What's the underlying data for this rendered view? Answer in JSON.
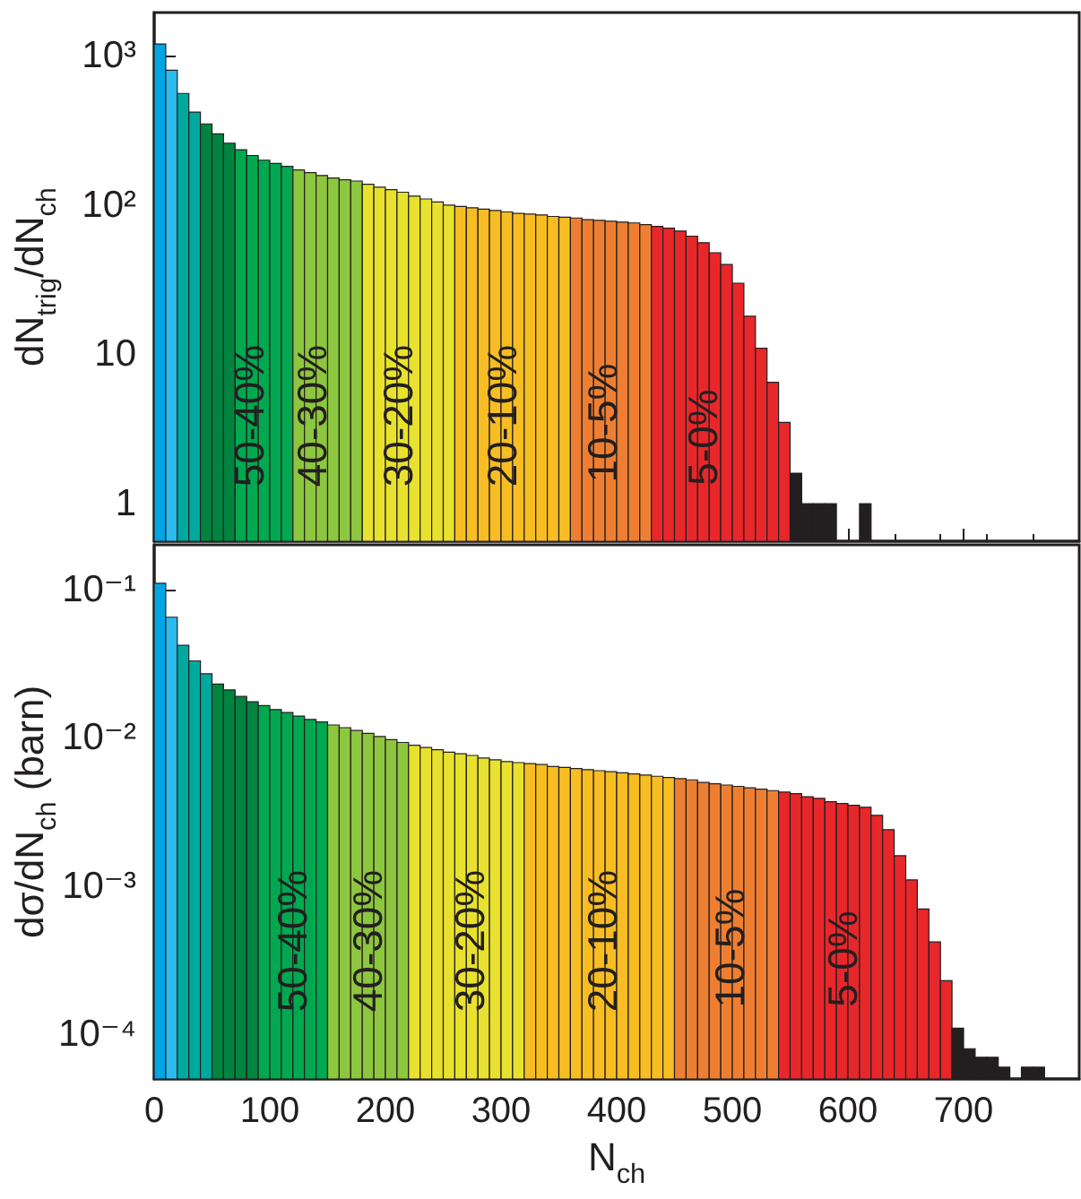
{
  "chart_data": [
    {
      "type": "histogram",
      "ylabel": "dN$_{trig}$/dN$_{ch}$",
      "log": "y",
      "tick_labels": "y",
      "bins": [
        0,
        10,
        20,
        30,
        40,
        50,
        60,
        70,
        80,
        90,
        100,
        110,
        120,
        130,
        140,
        150,
        160,
        170,
        180,
        190,
        200,
        210,
        220,
        230,
        240,
        250,
        260,
        270,
        280,
        290,
        300,
        310,
        320,
        330,
        340,
        350,
        360,
        370,
        380,
        390,
        400,
        410,
        420,
        430,
        440,
        450,
        460,
        470,
        480,
        490,
        500,
        510,
        520,
        530,
        540,
        550,
        560,
        570,
        580,
        590,
        600,
        610,
        620,
        630,
        640,
        650,
        660,
        670,
        680,
        690,
        700,
        710,
        720,
        730,
        740,
        750,
        760,
        770,
        780,
        790,
        800
      ],
      "values": [
        1200,
        800,
        560,
        420,
        350,
        300,
        260,
        235,
        215,
        200,
        190,
        182,
        172,
        165,
        158,
        152,
        148,
        145,
        138,
        132,
        127,
        122,
        115,
        110,
        105,
        100,
        98,
        96,
        94,
        92,
        90,
        88,
        87,
        86,
        84,
        83,
        82,
        80,
        79,
        78,
        77,
        76,
        74,
        72,
        70,
        67,
        62,
        56,
        48,
        40,
        30,
        18,
        11,
        6.5,
        3.5,
        1.6,
        1,
        1,
        1,
        null,
        null,
        1,
        null,
        null,
        null,
        null,
        null,
        null,
        null,
        null,
        null,
        null,
        null,
        null,
        null,
        null,
        null,
        null,
        null,
        null
      ],
      "colors": [
        "#00a6e3",
        "#2bbbed",
        "#00a99d",
        "#00a99d",
        "#00843f",
        "#00843f",
        "#00843f",
        "#00a84f",
        "#00a84f",
        "#00a84f",
        "#00a84f",
        "#00a84f",
        "#8dc63f",
        "#8dc63f",
        "#8dc63f",
        "#8dc63f",
        "#8dc63f",
        "#8dc63f",
        "#e8e22e",
        "#e8e22e",
        "#e8e22e",
        "#e8e22e",
        "#e8e22e",
        "#e8e22e",
        "#e8e22e",
        "#e8e22e",
        "#f7bd22",
        "#f7bd22",
        "#f7bd22",
        "#f7bd22",
        "#f7bd22",
        "#f7bd22",
        "#f7bd22",
        "#f7bd22",
        "#f7bd22",
        "#f7bd22",
        "#ee7f32",
        "#ee7f32",
        "#ee7f32",
        "#ee7f32",
        "#ee7f32",
        "#ee7f32",
        "#ee7f32",
        "#e8272b",
        "#e8272b",
        "#e8272b",
        "#e8272b",
        "#e8272b",
        "#e8272b",
        "#e8272b",
        "#e8272b",
        "#e8272b",
        "#e8272b",
        "#e8272b",
        "#e8272b",
        "#231f20",
        "#231f20",
        "#231f20",
        "#231f20",
        "#231f20",
        "#231f20",
        "#231f20",
        "#231f20",
        "#231f20",
        "#231f20",
        "#231f20",
        "#231f20",
        "#231f20",
        "#231f20",
        "#231f20",
        "#231f20",
        "#231f20",
        "#231f20",
        "#231f20",
        "#231f20",
        "#231f20",
        "#231f20",
        "#231f20",
        "#231f20",
        "#231f20"
      ],
      "xlim": [
        0,
        800
      ],
      "xticks": [
        0,
        100,
        200,
        300,
        400,
        500,
        600,
        700
      ],
      "ylim": [
        0.56,
        1950
      ],
      "yticks": [
        1,
        10,
        {
          "value": 100,
          "label": "10²"
        },
        {
          "value": 1000,
          "label": "10³"
        }
      ],
      "annotations": [
        "50-40%",
        "40-30%",
        "30-20%",
        "20-10%",
        "10-5%",
        "5-0%"
      ]
    },
    {
      "type": "histogram",
      "xlabel": "N$_{ch}$",
      "ylabel": "dσ/dN$_{ch}$ (barn)",
      "log": "y",
      "bins": [
        0,
        10,
        20,
        30,
        40,
        50,
        60,
        70,
        80,
        90,
        100,
        110,
        120,
        130,
        140,
        150,
        160,
        170,
        180,
        190,
        200,
        210,
        220,
        230,
        240,
        250,
        260,
        270,
        280,
        290,
        300,
        310,
        320,
        330,
        340,
        350,
        360,
        370,
        380,
        390,
        400,
        410,
        420,
        430,
        440,
        450,
        460,
        470,
        480,
        490,
        500,
        510,
        520,
        530,
        540,
        550,
        560,
        570,
        580,
        590,
        600,
        610,
        620,
        630,
        640,
        650,
        660,
        670,
        680,
        690,
        700,
        710,
        720,
        730,
        740,
        750,
        760,
        770,
        780,
        790,
        800
      ],
      "values": [
        0.11,
        0.065,
        0.042,
        0.033,
        0.027,
        0.023,
        0.021,
        0.019,
        0.0175,
        0.0165,
        0.0155,
        0.0148,
        0.014,
        0.0133,
        0.0128,
        0.0122,
        0.0117,
        0.0112,
        0.0107,
        0.0102,
        0.0097,
        0.0093,
        0.0089,
        0.0086,
        0.0083,
        0.008,
        0.0078,
        0.0076,
        0.0073,
        0.0071,
        0.0069,
        0.0068,
        0.0067,
        0.0066,
        0.0064,
        0.0063,
        0.0062,
        0.0061,
        0.006,
        0.0059,
        0.0058,
        0.0057,
        0.0056,
        0.0055,
        0.0054,
        0.0053,
        0.0052,
        0.005,
        0.0049,
        0.0048,
        0.0047,
        0.0046,
        0.0045,
        0.0044,
        0.0043,
        0.0042,
        0.004,
        0.0039,
        0.0037,
        0.0036,
        0.0035,
        0.0034,
        0.003,
        0.0024,
        0.0016,
        0.0011,
        0.0007,
        0.00042,
        0.00023,
        0.00011,
        8e-05,
        7e-05,
        7e-05,
        6e-05,
        null,
        6e-05,
        6e-05,
        null,
        null,
        null
      ],
      "colors": [
        "#00a6e3",
        "#2bbbed",
        "#00a99d",
        "#00a99d",
        "#00a99d",
        "#00843f",
        "#00843f",
        "#00843f",
        "#00843f",
        "#00a84f",
        "#00a84f",
        "#00a84f",
        "#00a84f",
        "#00a84f",
        "#00a84f",
        "#8dc63f",
        "#8dc63f",
        "#8dc63f",
        "#8dc63f",
        "#8dc63f",
        "#8dc63f",
        "#8dc63f",
        "#e8e22e",
        "#e8e22e",
        "#e8e22e",
        "#e8e22e",
        "#e8e22e",
        "#e8e22e",
        "#e8e22e",
        "#e8e22e",
        "#e8e22e",
        "#e8e22e",
        "#f7bd22",
        "#f7bd22",
        "#f7bd22",
        "#f7bd22",
        "#f7bd22",
        "#f7bd22",
        "#f7bd22",
        "#f7bd22",
        "#f7bd22",
        "#f7bd22",
        "#f7bd22",
        "#f7bd22",
        "#f7bd22",
        "#ee7f32",
        "#ee7f32",
        "#ee7f32",
        "#ee7f32",
        "#ee7f32",
        "#ee7f32",
        "#ee7f32",
        "#ee7f32",
        "#ee7f32",
        "#e8272b",
        "#e8272b",
        "#e8272b",
        "#e8272b",
        "#e8272b",
        "#e8272b",
        "#e8272b",
        "#e8272b",
        "#e8272b",
        "#e8272b",
        "#e8272b",
        "#e8272b",
        "#e8272b",
        "#e8272b",
        "#e8272b",
        "#231f20",
        "#231f20",
        "#231f20",
        "#231f20",
        "#231f20",
        "#231f20",
        "#231f20",
        "#231f20",
        "#231f20",
        "#231f20",
        "#231f20"
      ],
      "xlim": [
        0,
        800
      ],
      "xticks": [
        0,
        100,
        200,
        300,
        400,
        500,
        600,
        700
      ],
      "ylim": [
        5e-05,
        0.2
      ],
      "yticks": [
        {
          "value": 0.0001,
          "label": "10⁻⁴"
        },
        {
          "value": 0.001,
          "label": "10⁻³"
        },
        {
          "value": 0.01,
          "label": "10⁻²"
        },
        {
          "value": 0.1,
          "label": "10⁻¹"
        }
      ],
      "annotations": [
        "50-40%",
        "40-30%",
        "30-20%",
        "20-10%",
        "10-5%",
        "5-0%"
      ]
    }
  ]
}
